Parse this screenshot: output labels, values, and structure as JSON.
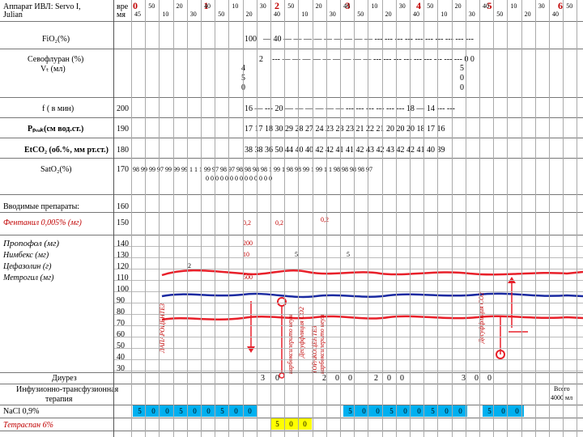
{
  "header": {
    "title_line1": "Аппарат ИВЛ: Servo I,",
    "title_line2": "Julian",
    "time_label_1": "вре",
    "time_label_2": "мя"
  },
  "hours": [
    "0",
    "1",
    "2",
    "3",
    "4",
    "5",
    "6"
  ],
  "hour_minute_marks": [
    "45",
    "50",
    "10",
    "20",
    "30",
    "40",
    "50",
    "10",
    "20",
    "30",
    "40",
    "50",
    "10",
    "20",
    "30",
    "40",
    "50",
    "10",
    "20",
    "30",
    "40",
    "50",
    "10",
    "20",
    "30",
    "40",
    "50",
    "10",
    "20",
    "30",
    "40",
    "50"
  ],
  "rows": {
    "fio2": {
      "label": "FiO₂(%)",
      "scale": "100",
      "values": "— 40 — — — — — — — — — --- --- --- --- --- --- --- --- --- ---"
    },
    "sevo": {
      "label_1": "Севофлуран (%)",
      "label_2": "Vₜ (мл)",
      "scale_1": "2",
      "scale_2": "4",
      "scale_3": "5",
      "scale_4": "0",
      "values": "--- — — — — — — — — — --- --- --- --- --- --- --- --- --- 0 0",
      "vt_a": "5",
      "vt_b": "0",
      "vt_c": "0"
    },
    "freq": {
      "label": "f ( в мин)",
      "scale": "200",
      "values": "16 — --- 20 — — — — — — --- --- --- --- --- --- 18 — 14 --- ---"
    },
    "ppeak": {
      "label": "Pₚₑₐₖ(см вод.ст.)",
      "scale": "190",
      "values": "17 17 18 30 29 28 27 24 23 23 23 21 22 21 20 20 20 18 17 16"
    },
    "etco2": {
      "label": "EtCO₂ (об.%, мм рт.ст.)",
      "scale": "180",
      "values": "38 38 36 50 44 40 40 42 42 41 41 42 43 42 43 42 42 41 40 39"
    },
    "sato2": {
      "label": "SatO₂(%)",
      "scale": "170",
      "values": "98 99 99 97 99 99 99 1 1 1 99 97 98 97 98 98 98 98 1 99 1 98 98 99 1 99 1 1 98 98 98 98 97",
      "sub_values": "0 0 0 0 0 0 0 0 0 0 0 0 0 0"
    }
  },
  "drugs_header": {
    "label": "Вводимые препараты:",
    "scale": "160"
  },
  "fentanyl": {
    "label": "Фентанил 0,005% (мг)",
    "scale": "150",
    "dose1": "0,2",
    "dose2": "0,2",
    "dose3": "0,2"
  },
  "propofol": {
    "label": "Пропофол (мг)",
    "scale": "140",
    "dose": "200"
  },
  "nimbex": {
    "label": "Нимбекс (мг)",
    "scale": "130",
    "dose1": "10",
    "dose2": "5",
    "dose3": "5"
  },
  "cefazolin": {
    "label": "Цефазолин (г)",
    "scale": "120",
    "dose": "2"
  },
  "metrogil": {
    "label": "Метрогил (мг)",
    "scale": "110",
    "dose": "500"
  },
  "scale_rest": [
    "100",
    "90",
    "80",
    "70",
    "60",
    "50",
    "40",
    "30"
  ],
  "annotations": {
    "lap": "ЛАПАРОЦЕНТЕЗ",
    "co2_desufflation": "Десуффляция CO2",
    "carboxy": "карбоксиперито неум",
    "thoraco": "ТОРАКОЦЕНТЕЗ карбоксиперито неум",
    "desufflation_co2": "Десуффляция CO2"
  },
  "diuresis": {
    "label": "Диурез",
    "values": [
      "3",
      "0",
      "2",
      "0",
      "0",
      "2",
      "0",
      "0",
      "3",
      "0",
      "0"
    ]
  },
  "infusion": {
    "label_1": "Инфузионно-трансфузионная",
    "label_2": "терапия",
    "total_1": "Всего",
    "total_2": "4000 мл"
  },
  "nacl": {
    "label": "NaCl 0,9%",
    "cells": [
      "5",
      "0",
      "0",
      "5",
      "0",
      "0",
      "5",
      "0",
      "0",
      "5",
      "0",
      "0",
      "5",
      "0",
      "0",
      "5",
      "0",
      "0",
      "5",
      "0",
      "0"
    ]
  },
  "tetraspan": {
    "label": "Тетраспан 6%",
    "cells": [
      "5",
      "0",
      "0"
    ]
  },
  "colors": {
    "bp_red": "#e8202a",
    "hr_blue": "#1a2aa0",
    "nacl_blue": "#00b0f0",
    "tetra_yellow": "#ffff00",
    "drug_red": "#c00000"
  }
}
